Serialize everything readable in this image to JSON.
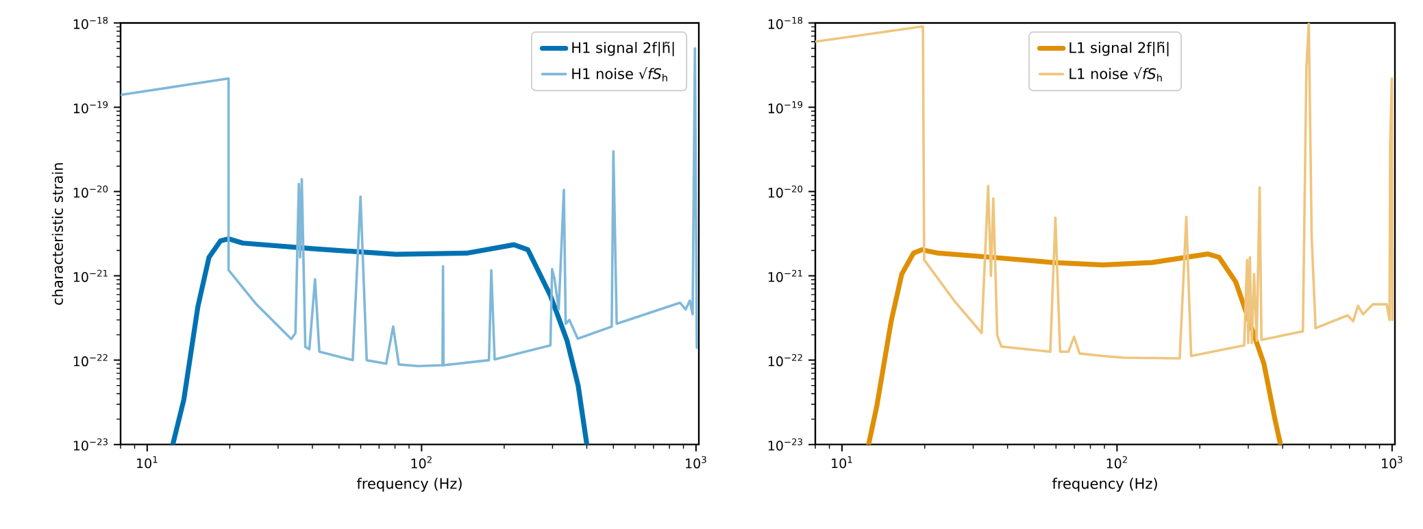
{
  "chart_data": [
    {
      "type": "line",
      "xlabel": "frequency (Hz)",
      "ylabel": "characteristic strain",
      "log": "xy",
      "legend": "top right",
      "xlim": [
        8,
        1024
      ],
      "ylim": [
        1e-23,
        1e-18
      ],
      "xticks": [
        {
          "value": 10,
          "label": "10$^{1}$"
        },
        {
          "value": 100,
          "label": "10$^{2}$"
        },
        {
          "value": 1000,
          "label": "10$^{3}$"
        }
      ],
      "yticks": [
        {
          "value": 1e-23,
          "label": "10$^{−23}$"
        },
        {
          "value": 1e-22,
          "label": "10$^{−22}$"
        },
        {
          "value": 1e-21,
          "label": "10$^{−21}$"
        },
        {
          "value": 1e-20,
          "label": "10$^{−20}$"
        },
        {
          "value": 1e-19,
          "label": "10$^{−19}$"
        },
        {
          "value": 1e-18,
          "label": "10$^{−18}$"
        }
      ],
      "series": [
        {
          "name": "H1 signal 2f|h̃|",
          "color": "#0072b2",
          "x": [
            12.4,
            13.6,
            15.3,
            16.8,
            18.5,
            19.8,
            22.3,
            40,
            80.7,
            146,
            217,
            244,
            295,
            339,
            372,
            400
          ],
          "values": [
            1e-23,
            3.4e-23,
            4.3e-22,
            1.66e-21,
            2.6e-21,
            2.75e-21,
            2.45e-21,
            2.1e-21,
            1.8e-21,
            1.86e-21,
            2.34e-21,
            2.04e-21,
            5.8e-22,
            1.7e-22,
            5e-23,
            1e-23
          ]
        },
        {
          "name": "H1 noise √*fS*$_{h}$",
          "color": "#7fb8d9",
          "x": [
            8,
            19.8,
            19.8,
            25.0,
            33.5,
            34.7,
            35.7,
            36.1,
            36.6,
            37.7,
            39.0,
            40.9,
            42.4,
            56.1,
            59.9,
            63.1,
            74.3,
            78.8,
            82.6,
            96.9,
            119.2,
            119.7,
            120.2,
            176,
            179.5,
            184.6,
            294.8,
            298.9,
            305,
            316,
            330,
            335,
            345.6,
            370.7,
            493,
            500,
            514,
            875,
            917,
            950,
            972,
            991,
            1007
          ],
          "values": [
            1.4e-19,
            2.2e-19,
            1.17e-21,
            4.6e-22,
            1.78e-22,
            2.1e-22,
            1.23e-20,
            1.66e-21,
            1.4e-20,
            1.44e-22,
            1.35e-22,
            9.1e-22,
            1.26e-22,
            1e-22,
            8.7e-21,
            1e-22,
            9.1e-23,
            2.5e-22,
            8.9e-23,
            8.5e-23,
            8.7e-23,
            1.3e-21,
            8.7e-23,
            1e-22,
            1.17e-21,
            1.02e-22,
            1.5e-22,
            1.2e-21,
            9.3e-22,
            4e-22,
            1.05e-20,
            2.7e-22,
            3e-22,
            1.8e-22,
            2.5e-22,
            3e-20,
            2.7e-22,
            4.8e-22,
            4e-22,
            5.1e-22,
            3.5e-22,
            5e-19,
            1.4e-22
          ]
        }
      ]
    },
    {
      "type": "line",
      "xlabel": "frequency (Hz)",
      "log": "xy",
      "legend": "top",
      "xlim": [
        8,
        1024
      ],
      "ylim": [
        1e-23,
        1e-18
      ],
      "xticks": [
        {
          "value": 10,
          "label": "10$^{1}$"
        },
        {
          "value": 100,
          "label": "10$^{2}$"
        },
        {
          "value": 1000,
          "label": "10$^{3}$"
        }
      ],
      "yticks": [
        {
          "value": 1e-23,
          "label": "10$^{−23}$"
        },
        {
          "value": 1e-22,
          "label": "10$^{−22}$"
        },
        {
          "value": 1e-21,
          "label": "10$^{−21}$"
        },
        {
          "value": 1e-20,
          "label": "10$^{−20}$"
        },
        {
          "value": 1e-19,
          "label": "10$^{−19}$"
        },
        {
          "value": 1e-18,
          "label": "10$^{−18}$"
        }
      ],
      "series": [
        {
          "name": "L1 signal 2f|h̃|",
          "color": "#de8f05",
          "x": [
            12.5,
            13.4,
            15.1,
            16.5,
            18.2,
            19.5,
            22.4,
            35.0,
            58.6,
            88.8,
            134,
            214,
            235,
            270,
            342,
            375,
            393
          ],
          "values": [
            1e-23,
            2.9e-23,
            2.9e-22,
            1.05e-21,
            1.86e-21,
            2.04e-21,
            1.86e-21,
            1.66e-21,
            1.44e-21,
            1.35e-21,
            1.44e-21,
            1.82e-21,
            1.66e-21,
            8.5e-22,
            9.1e-23,
            2e-23,
            1e-23
          ]
        },
        {
          "name": "L1 noise √*fS*$_{h}$",
          "color": "#efc57e",
          "x": [
            8,
            19.7,
            19.9,
            25.8,
            32.2,
            34.0,
            34.8,
            35.5,
            36.7,
            38.0,
            57.2,
            59.7,
            62.1,
            66.6,
            69.8,
            73.1,
            88.8,
            106,
            169,
            178.6,
            186,
            290,
            297,
            300,
            304,
            309,
            315,
            322,
            330,
            335,
            474,
            488,
            498,
            510,
            527,
            689,
            722,
            752,
            784,
            851,
            956,
            979,
            984,
            998,
            1002
          ],
          "values": [
            6e-19,
            9.1e-19,
            1.55e-21,
            4.9e-22,
            2.1e-22,
            1.17e-20,
            1e-21,
            8.3e-21,
            1.95e-22,
            1.45e-22,
            1.26e-22,
            4.9e-21,
            1.26e-22,
            1.26e-22,
            1.9e-22,
            1.2e-22,
            1.12e-22,
            1.07e-22,
            1.05e-22,
            5e-21,
            1.12e-22,
            1.5e-22,
            1.55e-21,
            1.6e-22,
            1.66e-21,
            1.6e-22,
            1.05e-21,
            1.7e-22,
            1.12e-20,
            1.74e-22,
            2.2e-22,
            2.9e-19,
            1e-18,
            3e-21,
            2.4e-22,
            3.4e-22,
            2.9e-22,
            4.4e-22,
            3.5e-22,
            4.6e-22,
            4.6e-22,
            3e-22,
            3.7e-20,
            2.2e-19,
            3e-22
          ]
        }
      ]
    }
  ]
}
